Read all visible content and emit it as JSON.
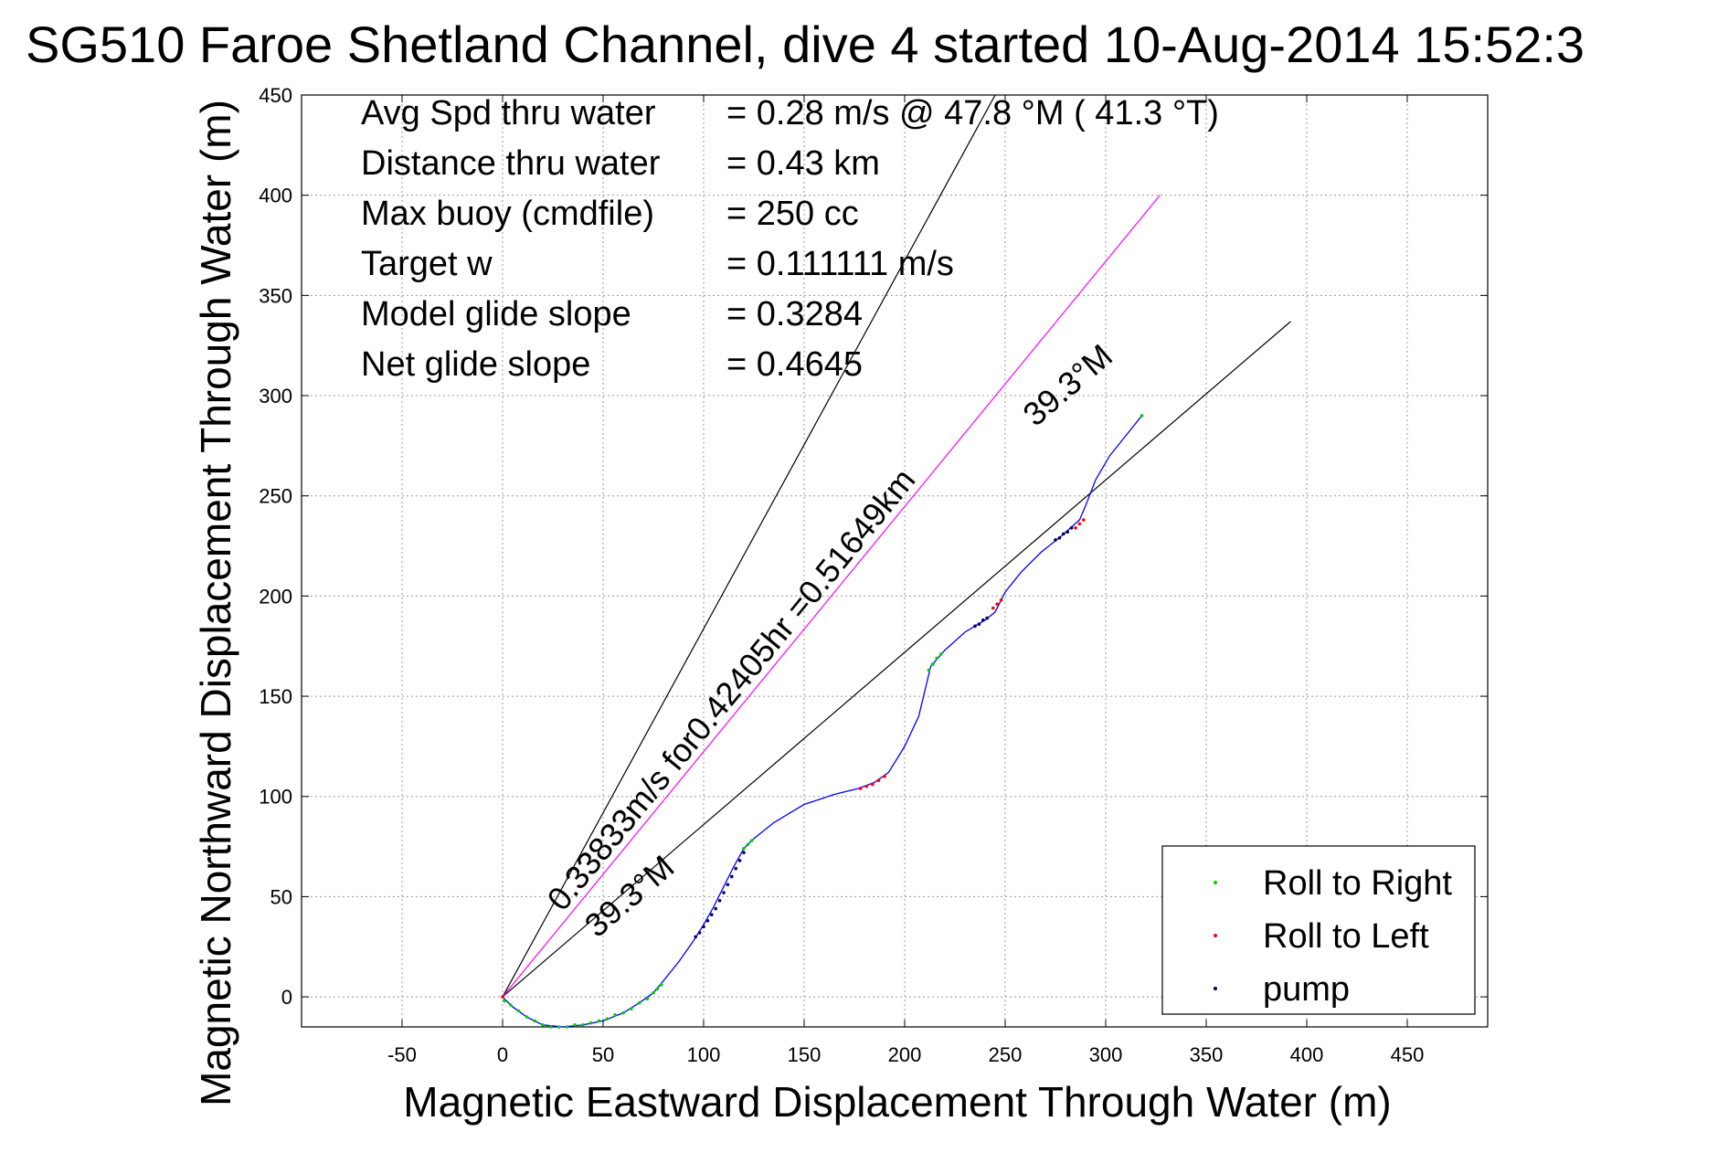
{
  "chart_data": {
    "type": "line",
    "title": "SG510 Faroe Shetland Channel, dive 4 started 10-Aug-2014 15:52:3",
    "xlabel": "Magnetic Eastward Displacement Through Water (m)",
    "ylabel": "Magnetic Northward Displacement Through Water (m)",
    "xlim": [
      -100,
      490
    ],
    "ylim": [
      -15,
      450
    ],
    "xticks": [
      -50,
      0,
      50,
      100,
      150,
      200,
      250,
      300,
      350,
      400,
      450
    ],
    "yticks": [
      0,
      50,
      100,
      150,
      200,
      250,
      300,
      350,
      400,
      450
    ],
    "grid": true,
    "info_lines": [
      {
        "label": "Avg Spd thru water",
        "value": "=  0.28 m/s @  47.8 °M ( 41.3 °T)"
      },
      {
        "label": "Distance thru water",
        "value": "=  0.43 km"
      },
      {
        "label": "Max buoy (cmdfile)",
        "value": "= 250 cc"
      },
      {
        "label": "Target w",
        "value": "= 0.111111 m/s"
      },
      {
        "label": "Model glide slope",
        "value": "= 0.3284"
      },
      {
        "label": "Net glide slope",
        "value": "= 0.4645"
      }
    ],
    "reference_lines": [
      {
        "name": "heading-line-steep",
        "color": "#000000",
        "x": [
          0,
          245
        ],
        "y": [
          0,
          450
        ]
      },
      {
        "name": "heading-line-39-3",
        "color": "#000000",
        "x": [
          0,
          392
        ],
        "y": [
          0,
          337
        ]
      },
      {
        "name": "current-line",
        "color": "#ff00ff",
        "x": [
          0,
          327
        ],
        "y": [
          0,
          400
        ]
      }
    ],
    "annotations": [
      {
        "text": "0.33833m/s for0.42405hr =0.51649km",
        "x": 30,
        "y": 42,
        "angle": 50.7
      },
      {
        "text": "39.3°M",
        "x": 47,
        "y": 29,
        "angle": 40.7
      },
      {
        "text": "39.3°M",
        "x": 265,
        "y": 284,
        "angle": 40.7
      }
    ],
    "series": [
      {
        "name": "track",
        "color": "#0000ff",
        "x": [
          0,
          5,
          12,
          20,
          30,
          40,
          50,
          60,
          68,
          75,
          80,
          88,
          95,
          100,
          105,
          110,
          115,
          120,
          125,
          135,
          150,
          165,
          177,
          185,
          192,
          200,
          207,
          213,
          220,
          230,
          240,
          245,
          250,
          258,
          268,
          278,
          287,
          290,
          295,
          302,
          310,
          318
        ],
        "y": [
          0,
          -5,
          -10,
          -14,
          -15,
          -14,
          -12,
          -8,
          -3,
          2,
          8,
          18,
          28,
          36,
          45,
          55,
          65,
          74,
          79,
          87,
          96,
          101,
          104,
          107,
          112,
          125,
          140,
          165,
          173,
          182,
          188,
          192,
          202,
          212,
          222,
          230,
          238,
          245,
          258,
          270,
          280,
          290
        ]
      },
      {
        "name": "Roll to Right",
        "color": "#00cc00",
        "x": [
          1,
          4,
          8,
          12,
          16,
          20,
          24,
          28,
          32,
          36,
          40,
          44,
          48,
          52,
          56,
          60,
          64,
          68,
          72,
          75,
          77,
          79,
          120,
          122,
          124,
          212,
          214,
          216,
          218,
          318
        ],
        "y": [
          -2,
          -4,
          -7,
          -10,
          -12,
          -14,
          -15,
          -15,
          -15,
          -14,
          -14,
          -13,
          -12,
          -11,
          -9,
          -8,
          -6,
          -3,
          -1,
          2,
          4,
          6,
          74,
          76,
          78,
          163,
          166,
          169,
          171,
          290
        ]
      },
      {
        "name": "Roll to Left",
        "color": "#ff0000",
        "x": [
          0,
          178,
          181,
          184,
          187,
          190,
          244,
          246,
          248,
          285,
          287,
          289
        ],
        "y": [
          0,
          104,
          105,
          106,
          108,
          110,
          194,
          196,
          198,
          234,
          236,
          238
        ]
      },
      {
        "name": "pump",
        "color": "#000066",
        "x": [
          96,
          98,
          100,
          102,
          104,
          106,
          108,
          110,
          112,
          114,
          116,
          118,
          120,
          235,
          237,
          239,
          241,
          275,
          277,
          279,
          281,
          283
        ],
        "y": [
          30,
          32,
          35,
          38,
          41,
          44,
          48,
          52,
          56,
          60,
          64,
          68,
          72,
          185,
          186,
          188,
          189,
          228,
          229,
          231,
          232,
          234
        ]
      }
    ],
    "legend": {
      "position": "bottom-right",
      "entries": [
        {
          "label": "Roll to Right",
          "color": "#00cc00"
        },
        {
          "label": "Roll to Left",
          "color": "#ff0000"
        },
        {
          "label": "pump",
          "color": "#000066"
        }
      ]
    }
  }
}
